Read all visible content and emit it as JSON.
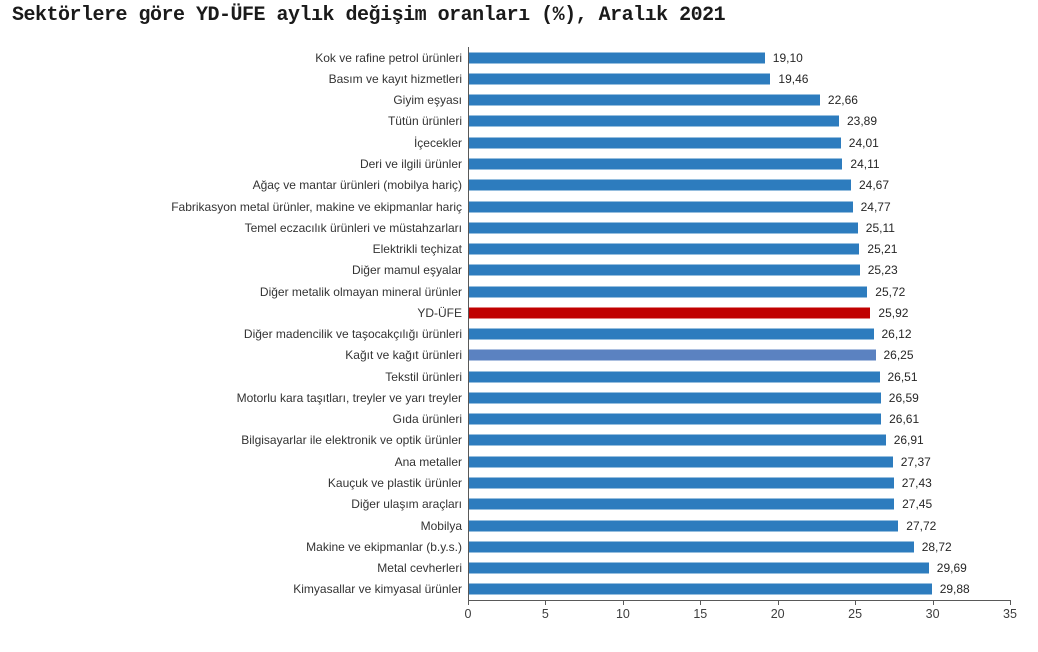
{
  "chart_data": {
    "type": "bar",
    "orientation": "horizontal",
    "title": "Sektörlere göre YD-ÜFE aylık değişim oranları (%), Aralık 2021",
    "categories": [
      "Kok ve rafine petrol ürünleri",
      "Basım ve kayıt hizmetleri",
      "Giyim eşyası",
      "Tütün ürünleri",
      "İçecekler",
      "Deri ve ilgili ürünler",
      "Ağaç ve mantar ürünleri (mobilya hariç)",
      "Fabrikasyon metal ürünler, makine ve ekipmanlar hariç",
      "Temel eczacılık ürünleri ve müstahzarları",
      "Elektrikli teçhizat",
      "Diğer mamul eşyalar",
      "Diğer metalik olmayan mineral ürünler",
      "YD-ÜFE",
      "Diğer madencilik ve taşocakçılığı ürünleri",
      "Kağıt ve kağıt ürünleri",
      "Tekstil ürünleri",
      "Motorlu kara taşıtları, treyler ve yarı treyler",
      "Gıda ürünleri",
      "Bilgisayarlar ile elektronik ve optik ürünler",
      "Ana metaller",
      "Kauçuk ve plastik ürünler",
      "Diğer ulaşım araçları",
      "Mobilya",
      "Makine ve ekipmanlar (b.y.s.)",
      "Metal cevherleri",
      "Kimyasallar ve kimyasal ürünler"
    ],
    "values": [
      19.1,
      19.46,
      22.66,
      23.89,
      24.01,
      24.11,
      24.67,
      24.77,
      25.11,
      25.21,
      25.23,
      25.72,
      25.92,
      26.12,
      26.25,
      26.51,
      26.59,
      26.61,
      26.91,
      27.37,
      27.43,
      27.45,
      27.72,
      28.72,
      29.69,
      29.88
    ],
    "value_labels": [
      "19,10",
      "19,46",
      "22,66",
      "23,89",
      "24,01",
      "24,11",
      "24,67",
      "24,77",
      "25,11",
      "25,21",
      "25,23",
      "25,72",
      "25,92",
      "26,12",
      "26,25",
      "26,51",
      "26,59",
      "26,61",
      "26,91",
      "27,37",
      "27,43",
      "27,45",
      "27,72",
      "28,72",
      "29,69",
      "29,88"
    ],
    "xlim": [
      0,
      35
    ],
    "x_ticks": [
      "0",
      "5",
      "10",
      "15",
      "20",
      "25",
      "30",
      "35"
    ],
    "grid": false,
    "legend": false,
    "colors": {
      "default_bar": "#2d7cbe",
      "highlight_bar": "#c00000",
      "secondary_bar": "#5b82c1",
      "axis": "#595959",
      "text": "#333333"
    },
    "highlight_index": 12,
    "secondary_index": 14
  }
}
